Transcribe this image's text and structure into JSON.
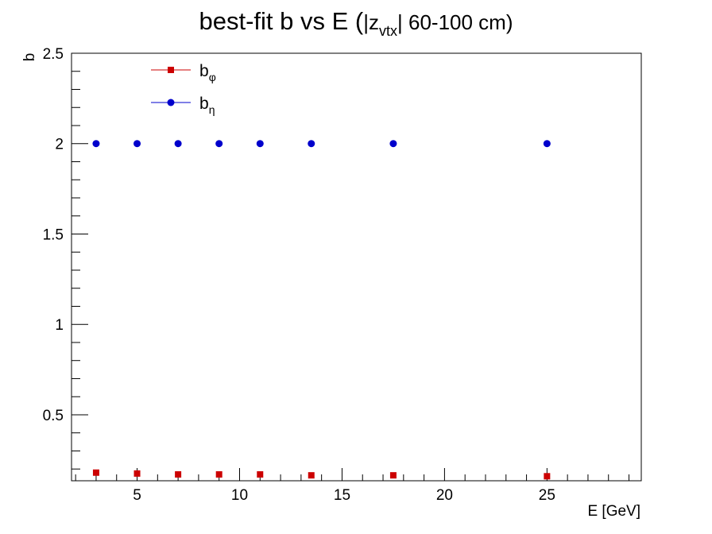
{
  "chart_data": {
    "type": "scatter",
    "title": {
      "main": "best-fit  b  vs  E  (",
      "z": "|z",
      "z_sub": "vtx",
      "rest": "| 60-100 cm)"
    },
    "xlabel": "E  [GeV]",
    "ylabel": "b",
    "xlim": [
      1.8,
      29.6
    ],
    "ylim": [
      0.135,
      2.5
    ],
    "x_ticks": [
      5,
      10,
      15,
      20,
      25
    ],
    "y_ticks": [
      0.5,
      1,
      1.5,
      2,
      2.5
    ],
    "y_tick_labels": [
      "0.5",
      "1",
      "1.5",
      "2",
      "2.5"
    ],
    "legend_position": "top-left",
    "series": [
      {
        "name": "b",
        "name_sub": "φ",
        "color": "#cc0000",
        "marker": "square",
        "x": [
          3,
          5,
          7,
          9,
          11,
          13.5,
          17.5,
          25
        ],
        "y": [
          0.18,
          0.175,
          0.17,
          0.17,
          0.17,
          0.165,
          0.165,
          0.16
        ]
      },
      {
        "name": "b",
        "name_sub": "η",
        "color": "#0000cc",
        "marker": "circle",
        "x": [
          3,
          5,
          7,
          9,
          11,
          13.5,
          17.5,
          25
        ],
        "y": [
          2,
          2,
          2,
          2,
          2,
          2,
          2,
          2
        ]
      }
    ]
  }
}
